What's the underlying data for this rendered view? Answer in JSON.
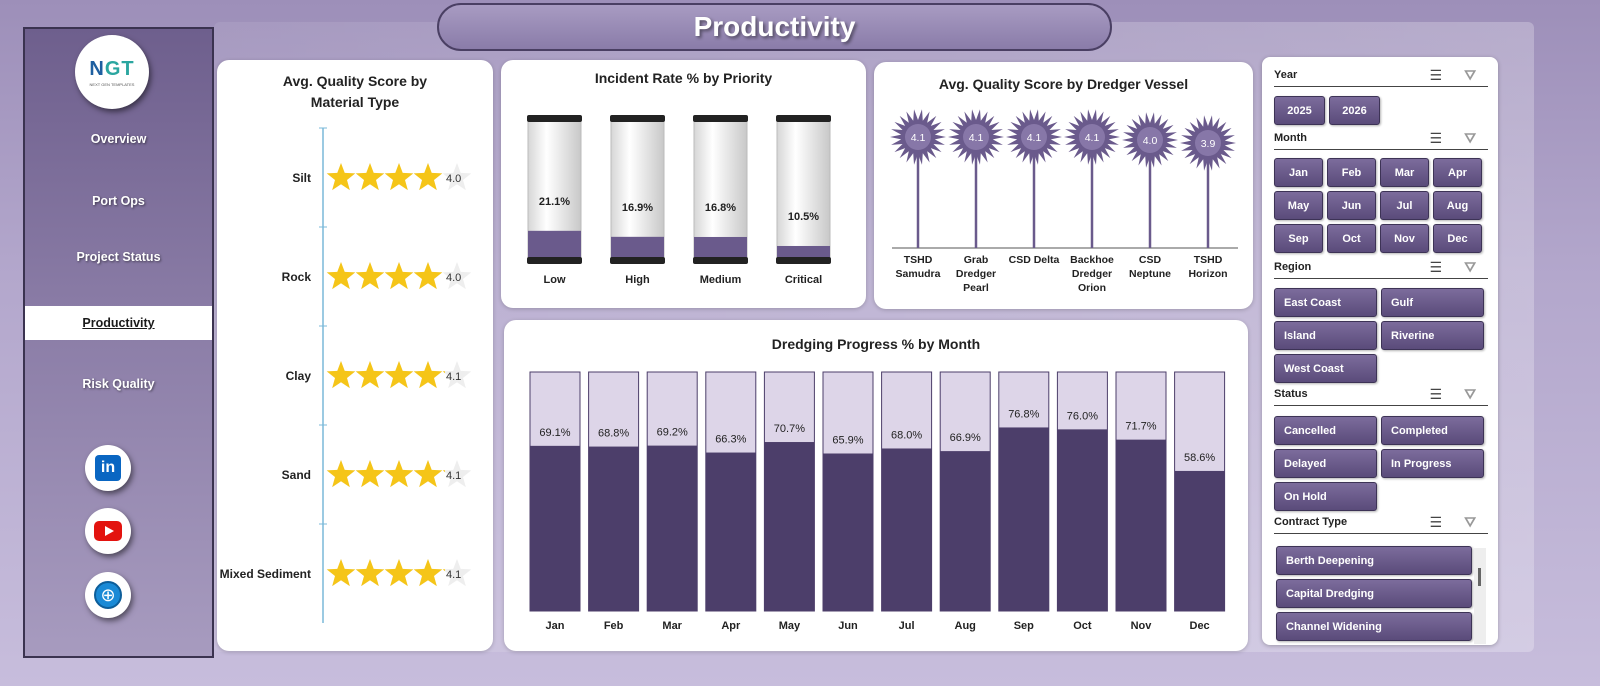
{
  "title": "Productivity",
  "logo": {
    "text_a": "N",
    "text_b": "GT",
    "sub": "NEXT GEN TEMPLATES"
  },
  "nav": [
    {
      "label": "Overview",
      "active": false
    },
    {
      "label": "Port Ops",
      "active": false
    },
    {
      "label": "Project Status",
      "active": false
    },
    {
      "label": "Productivity",
      "active": true
    },
    {
      "label": "Risk Quality",
      "active": false
    }
  ],
  "social": {
    "linkedin": "in",
    "youtube": "",
    "web": "⊕"
  },
  "icons": {
    "select_all": "checklist-icon",
    "clear_filter": "clear-filter-icon"
  },
  "charts": {
    "material": {
      "chart_data": {
        "type": "rating",
        "title": "Avg. Quality Score by Material Type",
        "categories": [
          "Silt",
          "Rock",
          "Clay",
          "Sand",
          "Mixed Sediment"
        ],
        "values": [
          4.0,
          4.0,
          4.1,
          4.1,
          4.1
        ],
        "max": 5,
        "labels": [
          "4.0",
          "4.0",
          "4.1",
          "4.1",
          "4.1"
        ],
        "color": "#f5c518"
      }
    },
    "incident": {
      "chart_data": {
        "type": "bar",
        "title": "Incident Rate % by Priority",
        "categories": [
          "Low",
          "High",
          "Medium",
          "Critical"
        ],
        "values": [
          21.1,
          16.9,
          16.8,
          10.5
        ],
        "labels": [
          "21.1%",
          "16.9%",
          "16.8%",
          "10.5%"
        ],
        "ylim": [
          0,
          100
        ],
        "color": "#6a5a8c"
      }
    },
    "vessel": {
      "chart_data": {
        "type": "lollipop",
        "title": "Avg. Quality Score by Dredger Vessel",
        "categories": [
          [
            "TSHD",
            "Samudra"
          ],
          [
            "Grab",
            "Dredger",
            "Pearl"
          ],
          [
            "CSD Delta"
          ],
          [
            "Backhoe",
            "Dredger",
            "Orion"
          ],
          [
            "CSD",
            "Neptune"
          ],
          [
            "TSHD",
            "Horizon"
          ]
        ],
        "values": [
          4.1,
          4.1,
          4.1,
          4.1,
          4.0,
          3.9
        ],
        "labels": [
          "4.1",
          "4.1",
          "4.1",
          "4.1",
          "4.0",
          "3.9"
        ],
        "color": "#6a5a8c"
      }
    },
    "progress": {
      "chart_data": {
        "type": "bar",
        "title": "Dredging Progress % by Month",
        "categories": [
          "Jan",
          "Feb",
          "Mar",
          "Apr",
          "May",
          "Jun",
          "Jul",
          "Aug",
          "Sep",
          "Oct",
          "Nov",
          "Dec"
        ],
        "values": [
          69.1,
          68.8,
          69.2,
          66.3,
          70.7,
          65.9,
          68.0,
          66.9,
          76.8,
          76.0,
          71.7,
          58.6
        ],
        "labels": [
          "69.1%",
          "68.8%",
          "69.2%",
          "66.3%",
          "70.7%",
          "65.9%",
          "68.0%",
          "66.9%",
          "76.8%",
          "76.0%",
          "71.7%",
          "58.6%"
        ],
        "ylim": [
          0,
          100
        ],
        "color": "#4c3e6a"
      }
    }
  },
  "filters": {
    "year": {
      "label": "Year",
      "items": [
        "2025",
        "2026"
      ]
    },
    "month": {
      "label": "Month",
      "items": [
        "Jan",
        "Feb",
        "Mar",
        "Apr",
        "May",
        "Jun",
        "Jul",
        "Aug",
        "Sep",
        "Oct",
        "Nov",
        "Dec"
      ]
    },
    "region": {
      "label": "Region",
      "items": [
        "East Coast",
        "Gulf",
        "Island",
        "Riverine",
        "West Coast"
      ]
    },
    "status": {
      "label": "Status",
      "items": [
        "Cancelled",
        "Completed",
        "Delayed",
        "In Progress",
        "On Hold"
      ]
    },
    "contract": {
      "label": "Contract Type",
      "items": [
        "Berth Deepening",
        "Capital Dredging",
        "Channel Widening"
      ]
    }
  }
}
